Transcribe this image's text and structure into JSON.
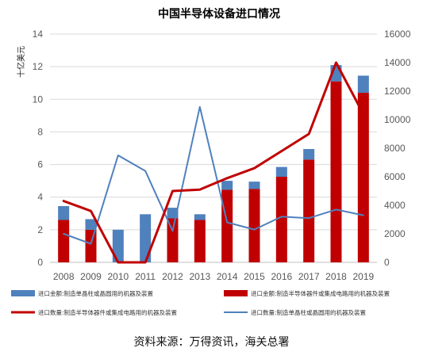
{
  "chart_data": {
    "type": "bar",
    "title": "中国半导体设备进口情况",
    "ylabel": "十亿美元",
    "categories": [
      "2008",
      "2009",
      "2010",
      "2011",
      "2012",
      "2013",
      "2014",
      "2015",
      "2016",
      "2017",
      "2018",
      "2019"
    ],
    "ylim": [
      0,
      14
    ],
    "y2lim": [
      0,
      16000
    ],
    "yticks": [
      "0",
      "2",
      "4",
      "6",
      "8",
      "10",
      "12",
      "14"
    ],
    "y2ticks": [
      "0",
      "2000",
      "4000",
      "6000",
      "8000",
      "10000",
      "12000",
      "14000",
      "16000"
    ],
    "colors": {
      "blue_bar": "#4f81bd",
      "red_bar": "#c00000",
      "red_line": "#c00000",
      "blue_line": "#4f81bd"
    },
    "legend_position": "bottom",
    "series": [
      {
        "name": "进口金额:制造单晶柱或晶圆用的机器及装置",
        "kind": "bar",
        "axis": "left",
        "color": "#4f81bd",
        "values": [
          0.85,
          0.65,
          2.0,
          2.95,
          0.65,
          0.35,
          0.55,
          0.45,
          0.6,
          0.65,
          1.0,
          1.05
        ]
      },
      {
        "name": "进口金额:制造半导体器件或集成电路用的机器及装置",
        "kind": "bar",
        "axis": "left",
        "color": "#c00000",
        "values": [
          2.6,
          2.0,
          0,
          0,
          2.7,
          2.6,
          4.45,
          4.5,
          5.25,
          6.3,
          11.1,
          10.4
        ]
      },
      {
        "name": "进口数量:制造半导体器件或集成电路用的机器及装置",
        "kind": "line",
        "axis": "right",
        "color": "#c00000",
        "values": [
          4300,
          3600,
          0,
          0,
          5000,
          5100,
          5900,
          6600,
          7800,
          9000,
          14000,
          10400
        ]
      },
      {
        "name": "进口数量:制造单晶柱或晶圆用的机器及装置",
        "kind": "line",
        "axis": "right",
        "color": "#4f81bd",
        "values": [
          2000,
          1300,
          7500,
          6400,
          2200,
          10900,
          2800,
          2300,
          3200,
          3100,
          3700,
          3300
        ]
      }
    ],
    "source": "资料来源：万得资讯，海关总署"
  }
}
